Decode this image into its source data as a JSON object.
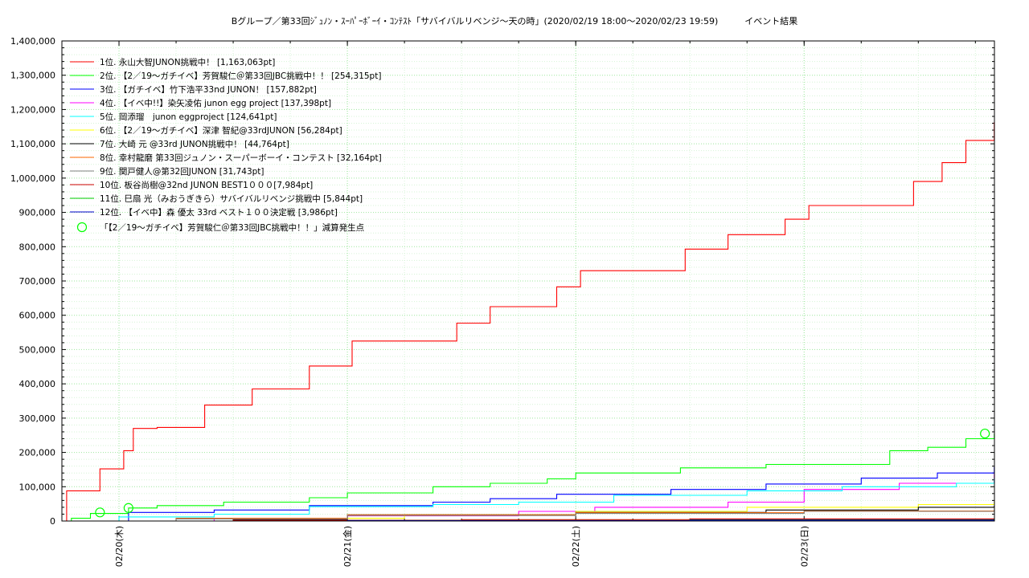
{
  "chart_data": {
    "type": "line",
    "title": "Bグループ／第33回ｼﾞｭﾉﾝ・ｽｰﾊﾟｰﾎﾞｰｲ・ｺﾝﾃｽﾄ「サバイバルリベンジ〜天の時」(2020/02/19 18:00〜2020/02/23 19:59)　　　イベント結果",
    "xlabel": "",
    "ylabel": "",
    "xlim": [
      "2020/02/19 18:00",
      "2020/02/23 20:00"
    ],
    "ylim": [
      0,
      1400000
    ],
    "y_ticks": [
      0,
      100000,
      200000,
      300000,
      400000,
      500000,
      600000,
      700000,
      800000,
      900000,
      1000000,
      1100000,
      1200000,
      1300000,
      1400000
    ],
    "y_tick_labels": [
      "0",
      "100,000",
      "200,000",
      "300,000",
      "400,000",
      "500,000",
      "600,000",
      "700,000",
      "800,000",
      "900,000",
      "1,000,000",
      "1,100,000",
      "1,200,000",
      "1,300,000",
      "1,400,000"
    ],
    "x_ticks": [
      "2020/02/20 00:00",
      "2020/02/21 00:00",
      "2020/02/22 00:00",
      "2020/02/23 00:00"
    ],
    "x_tick_labels": [
      "02/20(木)",
      "02/21(金)",
      "02/22(土)",
      "02/23(日)"
    ],
    "grid": true,
    "legend_position": "top-left",
    "series": [
      {
        "name": "1位. 永山大智JUNON挑戦中！ [1,163,063pt]",
        "color": "#ff0000",
        "x": [
          "2020/02/19 18:00",
          "2020/02/19 18:30",
          "2020/02/19 20:00",
          "2020/02/19 22:00",
          "2020/02/20 00:30",
          "2020/02/20 01:30",
          "2020/02/20 04:00",
          "2020/02/20 09:00",
          "2020/02/20 11:00",
          "2020/02/20 14:00",
          "2020/02/20 17:00",
          "2020/02/20 20:00",
          "2020/02/21 00:30",
          "2020/02/21 09:30",
          "2020/02/21 11:30",
          "2020/02/21 15:00",
          "2020/02/21 22:00",
          "2020/02/22 00:30",
          "2020/02/22 09:30",
          "2020/02/22 11:30",
          "2020/02/22 16:00",
          "2020/02/22 22:00",
          "2020/02/23 00:30",
          "2020/02/23 09:30",
          "2020/02/23 11:30",
          "2020/02/23 14:30",
          "2020/02/23 17:00",
          "2020/02/23 19:59"
        ],
        "values": [
          0,
          88000,
          88000,
          152000,
          205000,
          270000,
          273000,
          338000,
          338000,
          385000,
          385000,
          452000,
          525000,
          525000,
          577000,
          625000,
          683000,
          730000,
          730000,
          793000,
          835000,
          880000,
          920000,
          920000,
          990000,
          1045000,
          1110000,
          1163063
        ]
      },
      {
        "name": "2位. 【2／19〜ガチイベ】芳賀駿仁＠第33回JBC挑戦中！！ [254,315pt]",
        "color": "#00ff00",
        "x": [
          "2020/02/19 18:00",
          "2020/02/19 19:00",
          "2020/02/19 21:00",
          "2020/02/20 01:00",
          "2020/02/20 04:00",
          "2020/02/20 11:00",
          "2020/02/20 20:00",
          "2020/02/21 00:00",
          "2020/02/21 09:00",
          "2020/02/21 15:00",
          "2020/02/21 21:00",
          "2020/02/22 00:00",
          "2020/02/22 11:00",
          "2020/02/22 20:00",
          "2020/02/23 09:00",
          "2020/02/23 13:00",
          "2020/02/23 17:00",
          "2020/02/23 19:59"
        ],
        "values": [
          0,
          8000,
          22000,
          38000,
          45000,
          55000,
          68000,
          82000,
          100000,
          110000,
          123000,
          140000,
          155000,
          165000,
          205000,
          215000,
          240000,
          254315
        ]
      },
      {
        "name": "3位. 【ガチイベ】竹下浩平33nd JUNON！ [157,882pt]",
        "color": "#0000ff",
        "x": [
          "2020/02/19 18:00",
          "2020/02/20 01:00",
          "2020/02/20 10:00",
          "2020/02/20 20:00",
          "2020/02/21 09:00",
          "2020/02/21 15:00",
          "2020/02/21 22:00",
          "2020/02/22 10:00",
          "2020/02/22 20:00",
          "2020/02/23 06:00",
          "2020/02/23 14:00",
          "2020/02/23 19:59"
        ],
        "values": [
          0,
          25000,
          32000,
          45000,
          55000,
          65000,
          78000,
          92000,
          108000,
          125000,
          140000,
          157882
        ]
      },
      {
        "name": "4位. 【イベ中!!】染矢凌佑 junon egg project [137,398pt]",
        "color": "#ff00ff",
        "x": [
          "2020/02/19 18:00",
          "2020/02/20 10:00",
          "2020/02/21 00:00",
          "2020/02/21 18:00",
          "2020/02/22 02:00",
          "2020/02/22 16:00",
          "2020/02/23 00:00",
          "2020/02/23 10:00",
          "2020/02/23 19:59"
        ],
        "values": [
          0,
          8000,
          15000,
          28000,
          40000,
          55000,
          92000,
          110000,
          137398
        ]
      },
      {
        "name": "5位. 岡添瑠　junon eggproject [124,641pt]",
        "color": "#00ffff",
        "x": [
          "2020/02/19 18:00",
          "2020/02/20 00:00",
          "2020/02/20 10:00",
          "2020/02/20 20:00",
          "2020/02/21 09:00",
          "2020/02/21 18:00",
          "2020/02/22 04:00",
          "2020/02/22 18:00",
          "2020/02/23 04:00",
          "2020/02/23 16:00",
          "2020/02/23 19:59"
        ],
        "values": [
          0,
          12000,
          20000,
          42000,
          48000,
          55000,
          75000,
          88000,
          100000,
          110000,
          124641
        ]
      },
      {
        "name": "6位. 【2／19〜ガチイベ】深津 智紀@33rdJUNON [56,284pt]",
        "color": "#ffff00",
        "x": [
          "2020/02/19 18:00",
          "2020/02/20 12:00",
          "2020/02/21 06:00",
          "2020/02/22 00:00",
          "2020/02/22 18:00",
          "2020/02/23 12:00",
          "2020/02/23 19:59"
        ],
        "values": [
          0,
          8000,
          18000,
          28000,
          40000,
          48000,
          56284
        ]
      },
      {
        "name": "7位. 大崎 元 @33rd JUNON挑戦中！ [44,764pt]",
        "color": "#000000",
        "x": [
          "2020/02/19 18:00",
          "2020/02/20 12:00",
          "2020/02/21 00:00",
          "2020/02/22 00:00",
          "2020/02/22 20:00",
          "2020/02/23 12:00",
          "2020/02/23 19:59"
        ],
        "values": [
          0,
          5000,
          18000,
          25000,
          32000,
          40000,
          44764
        ]
      },
      {
        "name": "8位. 幸村龍磨 第33回ジュノン・スーパーボーイ・コンテスト [32,164pt]",
        "color": "#ff6600",
        "x": [
          "2020/02/19 18:00",
          "2020/02/20 06:00",
          "2020/02/21 00:00",
          "2020/02/22 00:00",
          "2020/02/23 00:00",
          "2020/02/23 19:59"
        ],
        "values": [
          0,
          8000,
          18000,
          24000,
          29000,
          32164
        ]
      },
      {
        "name": "9位. 関戸健人@第32回JUNON [31,743pt]",
        "color": "#808080",
        "x": [
          "2020/02/19 18:00",
          "2020/02/20 06:00",
          "2020/02/21 00:00",
          "2020/02/22 00:00",
          "2020/02/23 00:00",
          "2020/02/23 19:59"
        ],
        "values": [
          0,
          6000,
          16000,
          22000,
          28000,
          31743
        ]
      },
      {
        "name": "10位. 板谷尚樹@32nd JUNON BEST1０００[7,984pt]",
        "color": "#cc0000",
        "x": [
          "2020/02/19 18:00",
          "2020/02/20 12:00",
          "2020/02/21 12:00",
          "2020/02/22 12:00",
          "2020/02/23 19:59"
        ],
        "values": [
          0,
          2000,
          4000,
          6000,
          7984
        ]
      },
      {
        "name": "11位. 巳扇 光（みおうぎきら）サバイバルリベンジ挑戦中 [5,844pt]",
        "color": "#00cc00",
        "x": [
          "2020/02/19 18:00",
          "2020/02/21 00:00",
          "2020/02/22 12:00",
          "2020/02/23 19:59"
        ],
        "values": [
          0,
          1500,
          3500,
          5844
        ]
      },
      {
        "name": "12位. 【イベ中】森 優太 33rd ベスト１００決定戦 [3,986pt]",
        "color": "#0000cc",
        "x": [
          "2020/02/19 18:00",
          "2020/02/21 00:00",
          "2020/02/22 12:00",
          "2020/02/23 19:59"
        ],
        "values": [
          0,
          1000,
          2500,
          3986
        ]
      }
    ],
    "markers": {
      "name": "「【2／19〜ガチイベ】芳賀駿仁＠第33回JBC挑戦中！！」減算発生点",
      "color": "#00ff00",
      "points": [
        {
          "x": "2020/02/19 22:00",
          "y": 25000
        },
        {
          "x": "2020/02/20 01:00",
          "y": 38000
        },
        {
          "x": "2020/02/23 19:00",
          "y": 255000
        }
      ]
    }
  }
}
